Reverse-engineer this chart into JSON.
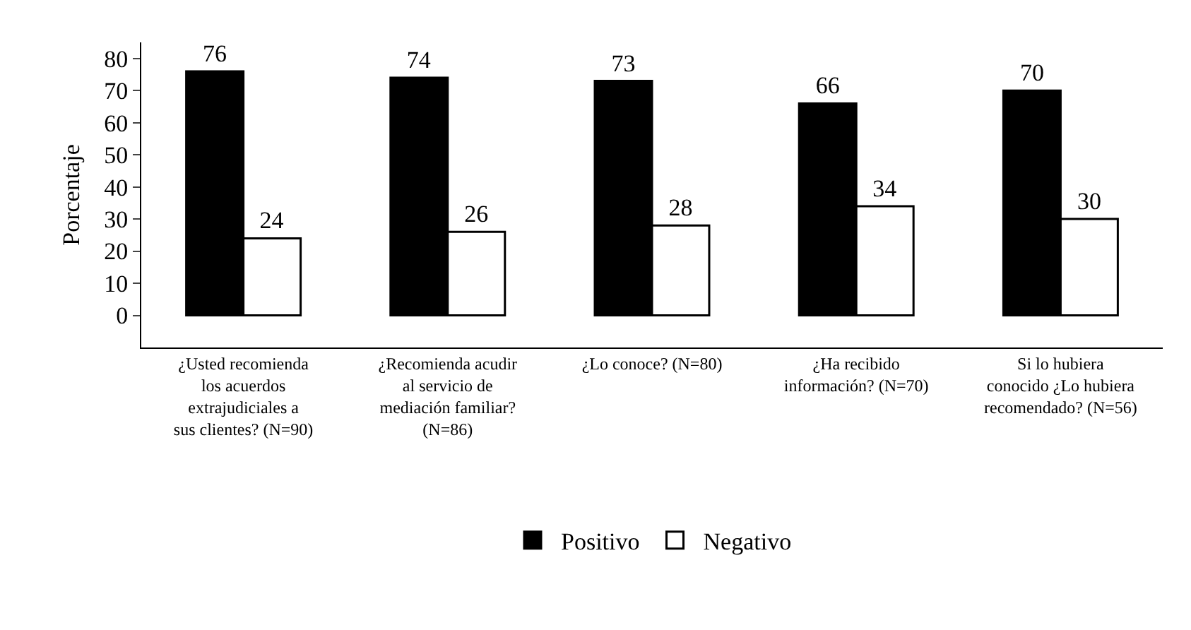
{
  "chart_data": {
    "type": "bar",
    "ylabel": "Porcentaje",
    "categories": [
      "¿Usted recomienda los acuerdos extrajudiciales a sus clientes? (N=90)",
      "¿Recomienda acudir al servicio de mediación familiar? (N=86)",
      "¿Lo conoce? (N=80)",
      "¿Ha recibido información? (N=70)",
      "Si lo hubiera conocido ¿Lo hubiera recomendado? (N=56)"
    ],
    "series": [
      {
        "name": "Positivo",
        "color": "#000000",
        "values": [
          76,
          74,
          73,
          66,
          70
        ]
      },
      {
        "name": "Negativo",
        "color": "#ffffff",
        "values": [
          24,
          26,
          28,
          34,
          30
        ]
      }
    ],
    "ylim": [
      -10,
      85
    ],
    "yticks": [
      0,
      10,
      20,
      30,
      40,
      50,
      60,
      70,
      80
    ],
    "grid": false,
    "legend": "bottom",
    "data_labels": true
  }
}
